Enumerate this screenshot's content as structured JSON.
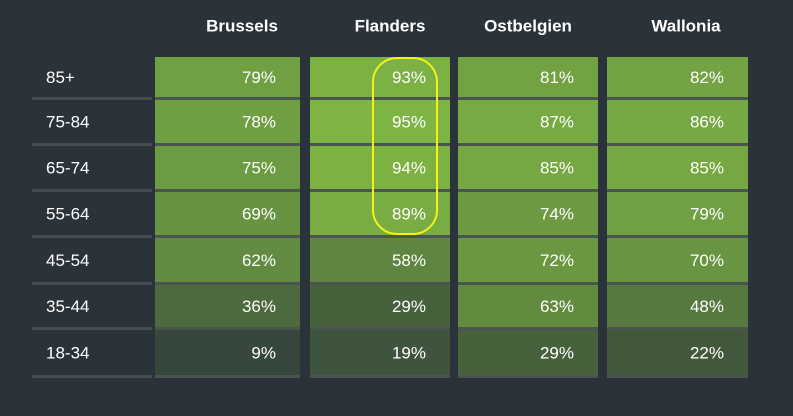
{
  "chart_data": {
    "type": "heatmap",
    "columns": [
      "Brussels",
      "Flanders",
      "Ostbelgien",
      "Wallonia"
    ],
    "rows": [
      "85+",
      "75-84",
      "65-74",
      "55-64",
      "45-54",
      "35-44",
      "18-34"
    ],
    "values": [
      [
        79,
        93,
        81,
        82
      ],
      [
        78,
        95,
        87,
        86
      ],
      [
        75,
        94,
        85,
        85
      ],
      [
        69,
        89,
        74,
        79
      ],
      [
        62,
        58,
        72,
        70
      ],
      [
        36,
        29,
        63,
        48
      ],
      [
        9,
        19,
        29,
        22
      ]
    ],
    "value_labels": [
      [
        "79%",
        "93%",
        "81%",
        "82%"
      ],
      [
        "78%",
        "95%",
        "87%",
        "86%"
      ],
      [
        "75%",
        "94%",
        "85%",
        "85%"
      ],
      [
        "69%",
        "89%",
        "74%",
        "79%"
      ],
      [
        "62%",
        "58%",
        "72%",
        "70%"
      ],
      [
        "36%",
        "29%",
        "63%",
        "48%"
      ],
      [
        "9%",
        "19%",
        "29%",
        "22%"
      ]
    ],
    "color_low": "#2f3c3a",
    "color_high": "#82ba44"
  }
}
